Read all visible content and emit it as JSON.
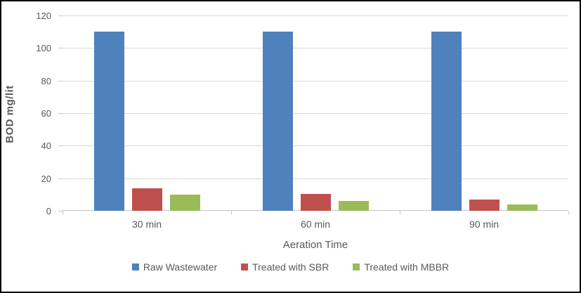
{
  "chart_data": {
    "type": "bar",
    "categories": [
      "30 min",
      "60 min",
      "90 min"
    ],
    "series": [
      {
        "name": "Raw Wastewater",
        "color": "#4F81BD",
        "values": [
          110,
          110,
          110
        ]
      },
      {
        "name": "Treated with SBR",
        "color": "#C0504D",
        "values": [
          14,
          10.5,
          7
        ]
      },
      {
        "name": "Treated with MBBR",
        "color": "#9BBB59",
        "values": [
          10,
          6,
          4
        ]
      }
    ],
    "xlabel": "Aeration Time",
    "ylabel": "BOD mg/lit",
    "ylim": [
      0,
      120
    ],
    "yticks": [
      0,
      20,
      40,
      60,
      80,
      100,
      120
    ],
    "grid": true,
    "legend_position": "bottom",
    "palette": {
      "gridline": "#D9D9D9",
      "axis_line": "#C6C6C6",
      "text": "#595959",
      "border": "#000000"
    }
  }
}
